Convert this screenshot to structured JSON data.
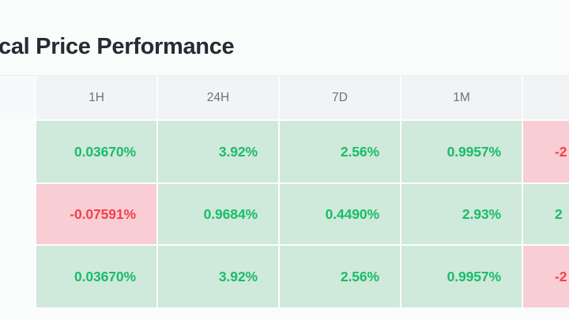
{
  "title": "cal Price Performance",
  "table": {
    "columns": [
      "",
      "1H",
      "24H",
      "7D",
      "1M",
      ""
    ],
    "rows": [
      {
        "cells": [
          {
            "text": "",
            "trend": "none"
          },
          {
            "text": "0.03670%",
            "trend": "up"
          },
          {
            "text": "3.92%",
            "trend": "up"
          },
          {
            "text": "2.56%",
            "trend": "up"
          },
          {
            "text": "0.9957%",
            "trend": "up"
          },
          {
            "text": "-2",
            "trend": "down"
          }
        ]
      },
      {
        "cells": [
          {
            "text": "",
            "trend": "none"
          },
          {
            "text": "-0.07591%",
            "trend": "down"
          },
          {
            "text": "0.9684%",
            "trend": "up"
          },
          {
            "text": "0.4490%",
            "trend": "up"
          },
          {
            "text": "2.93%",
            "trend": "up"
          },
          {
            "text": "2",
            "trend": "up"
          }
        ]
      },
      {
        "cells": [
          {
            "text": "",
            "trend": "none"
          },
          {
            "text": "0.03670%",
            "trend": "up"
          },
          {
            "text": "3.92%",
            "trend": "up"
          },
          {
            "text": "2.56%",
            "trend": "up"
          },
          {
            "text": "0.9957%",
            "trend": "up"
          },
          {
            "text": "-2",
            "trend": "down"
          }
        ]
      }
    ]
  },
  "colors": {
    "page_bg": "#fafbfb",
    "title_text": "#262c33",
    "header_bg": "#f2f3f5",
    "header_text": "#6a737d",
    "positive_text": "#1abc6a",
    "positive_bg": "#cfe9da",
    "negative_text": "#f2414e",
    "negative_bg": "#f8cdd3"
  }
}
